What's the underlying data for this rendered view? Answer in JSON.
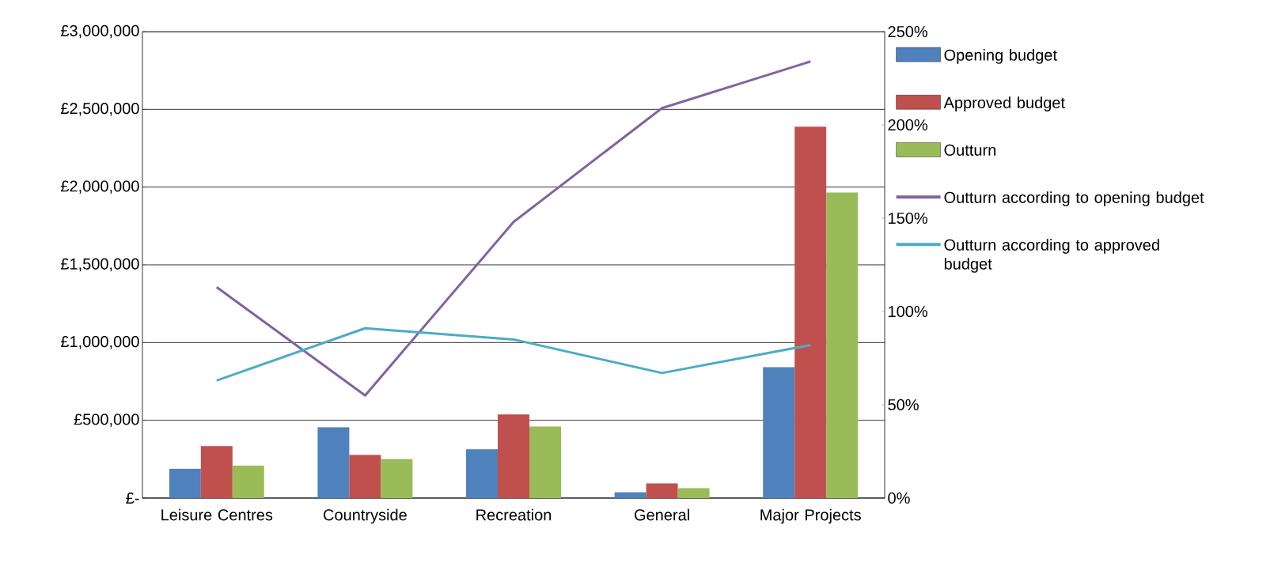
{
  "chart_data": {
    "type": "bar",
    "categories": [
      "Leisure Centres",
      "Countryside",
      "Recreation",
      "General",
      "Major Projects"
    ],
    "series": [
      {
        "name": "Opening budget",
        "color": "#4f81bd",
        "values": [
          188000,
          455000,
          314000,
          37000,
          841000
        ]
      },
      {
        "name": "Approved budget",
        "color": "#c0504d",
        "values": [
          334000,
          277000,
          538000,
          94000,
          2389000
        ]
      },
      {
        "name": "Outturn",
        "color": "#9bbb59",
        "values": [
          209000,
          251000,
          460000,
          63000,
          1965000
        ]
      },
      {
        "name": "Outturn according to opening budget",
        "type": "line",
        "axis": "y2",
        "color": "#8064a2",
        "values": [
          113,
          55,
          148,
          209,
          234
        ]
      },
      {
        "name": "Outturn according to approved budget",
        "type": "line",
        "axis": "y2",
        "color": "#4bacc6",
        "values": [
          63,
          91,
          85,
          67,
          82
        ]
      }
    ],
    "ylim": [
      0,
      3000000
    ],
    "yticks": [
      {
        "value": 0,
        "label": "£-"
      },
      {
        "value": 500000,
        "label": "£500,000"
      },
      {
        "value": 1000000,
        "label": "£1,000,000"
      },
      {
        "value": 1500000,
        "label": "£1,500,000"
      },
      {
        "value": 2000000,
        "label": "£2,000,000"
      },
      {
        "value": 2500000,
        "label": "£2,500,000"
      },
      {
        "value": 3000000,
        "label": "£3,000,000"
      }
    ],
    "y2lim": [
      0,
      250
    ],
    "y2ticks": [
      {
        "value": 0,
        "label": "0%"
      },
      {
        "value": 50,
        "label": "50%"
      },
      {
        "value": 100,
        "label": "100%"
      },
      {
        "value": 150,
        "label": "150%"
      },
      {
        "value": 200,
        "label": "200%"
      },
      {
        "value": 250,
        "label": "250%"
      }
    ],
    "grid": "y",
    "legend": "right",
    "line_style": "solid"
  }
}
